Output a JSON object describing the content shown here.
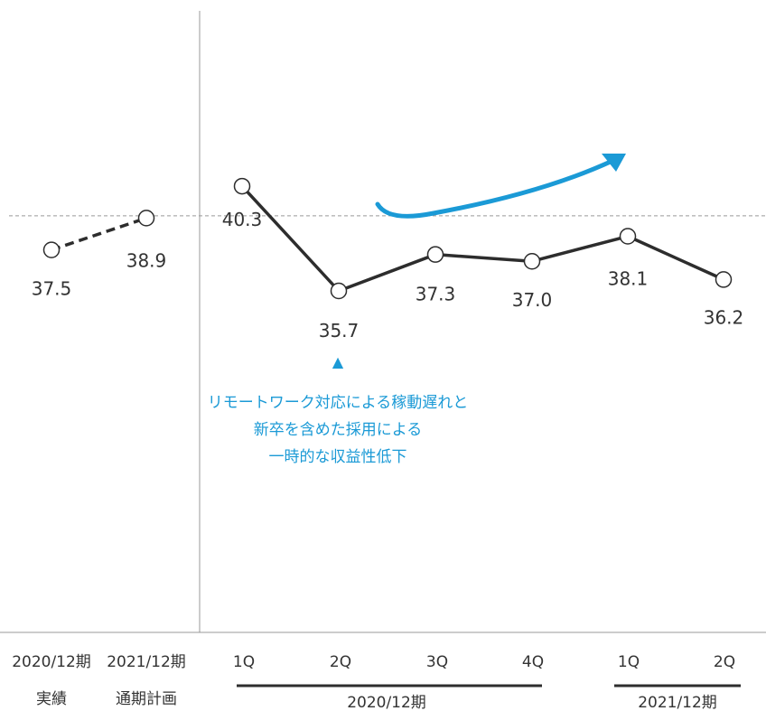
{
  "chart_data": {
    "type": "line",
    "reference_line": 39.0,
    "colors": {
      "line": "#2d2d2d",
      "accent": "#1b9ad6",
      "axis": "#999999",
      "text": "#333333"
    },
    "annual": {
      "series": [
        {
          "category": "2020/12期",
          "sub": "実績",
          "value": 37.5,
          "label": "37.5"
        },
        {
          "category": "2021/12期",
          "sub": "通期計画",
          "value": 38.9,
          "label": "38.9"
        }
      ],
      "style": "dashed"
    },
    "quarterly": {
      "series": [
        {
          "category": "1Q",
          "value": 40.3,
          "label": "40.3"
        },
        {
          "category": "2Q",
          "value": 35.7,
          "label": "35.7"
        },
        {
          "category": "3Q",
          "value": 37.3,
          "label": "37.3"
        },
        {
          "category": "4Q",
          "value": 37.0,
          "label": "37.0"
        },
        {
          "category": "1Q",
          "value": 38.1,
          "label": "38.1"
        },
        {
          "category": "2Q",
          "value": 36.2,
          "label": "36.2"
        }
      ],
      "style": "solid"
    },
    "groups": [
      {
        "label": "2020/12期"
      },
      {
        "label": "2021/12期"
      }
    ],
    "annotation": {
      "marker": "▲",
      "lines": [
        "リモートワーク対応による稼動遅れと",
        "新卒を含めた採用による",
        "一時的な収益性低下"
      ]
    },
    "trend_arrow": "up-right"
  }
}
